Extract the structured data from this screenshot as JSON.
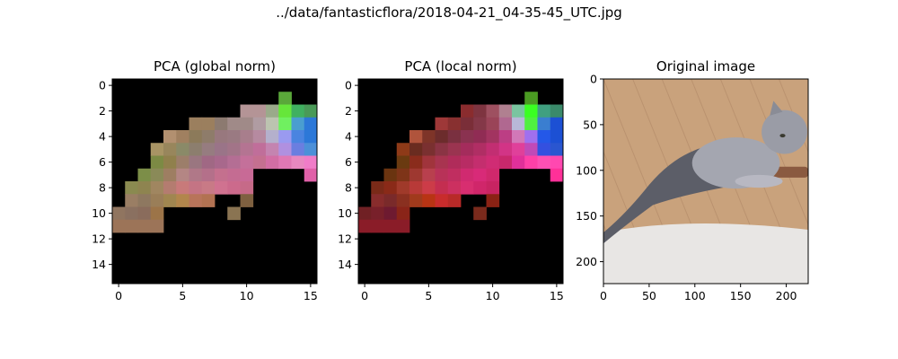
{
  "figure_title": "../data/fantasticflora/2018-04-21_04-35-45_UTC.jpg",
  "colors": {
    "background": "#000000",
    "axis": "#000000"
  },
  "chart_data": [
    {
      "type": "heatmap",
      "title": "PCA (global norm)",
      "grid_size": 16,
      "xticks": [
        0,
        5,
        10,
        15
      ],
      "yticks": [
        0,
        2,
        4,
        6,
        8,
        10,
        12,
        14
      ],
      "grid": false,
      "cells": [
        [
          1,
          13,
          "#5aa83a"
        ],
        [
          2,
          10,
          "#b49496"
        ],
        [
          2,
          11,
          "#b49496"
        ],
        [
          2,
          12,
          "#9aaa8a"
        ],
        [
          2,
          13,
          "#66e63a"
        ],
        [
          2,
          14,
          "#40b060"
        ],
        [
          2,
          15,
          "#4a9a58"
        ],
        [
          3,
          6,
          "#9b7f5e"
        ],
        [
          3,
          7,
          "#9b7f5e"
        ],
        [
          3,
          8,
          "#8c7a70"
        ],
        [
          3,
          9,
          "#a08a88"
        ],
        [
          3,
          10,
          "#a08a88"
        ],
        [
          3,
          11,
          "#b09ca2"
        ],
        [
          3,
          12,
          "#bcc4b0"
        ],
        [
          3,
          13,
          "#70f060"
        ],
        [
          3,
          14,
          "#4a9ed0"
        ],
        [
          3,
          15,
          "#2c78d8"
        ],
        [
          4,
          4,
          "#b29070"
        ],
        [
          4,
          5,
          "#a08060"
        ],
        [
          4,
          6,
          "#8c7a5a"
        ],
        [
          4,
          7,
          "#8e7c6a"
        ],
        [
          4,
          8,
          "#98787e"
        ],
        [
          4,
          9,
          "#9a7a82"
        ],
        [
          4,
          10,
          "#a87e8c"
        ],
        [
          4,
          11,
          "#b68aa0"
        ],
        [
          4,
          12,
          "#b4b0cc"
        ],
        [
          4,
          13,
          "#9a9af0"
        ],
        [
          4,
          14,
          "#4a84e0"
        ],
        [
          4,
          15,
          "#2c78d8"
        ],
        [
          5,
          3,
          "#a89464"
        ],
        [
          5,
          4,
          "#98865c"
        ],
        [
          5,
          5,
          "#8a8a68"
        ],
        [
          5,
          6,
          "#8c7e6e"
        ],
        [
          5,
          7,
          "#967c80"
        ],
        [
          5,
          8,
          "#9a7488"
        ],
        [
          5,
          9,
          "#a27488"
        ],
        [
          5,
          10,
          "#b47492"
        ],
        [
          5,
          11,
          "#c06e9a"
        ],
        [
          5,
          12,
          "#c484b0"
        ],
        [
          5,
          13,
          "#b090e0"
        ],
        [
          5,
          14,
          "#6a7ee0"
        ],
        [
          5,
          15,
          "#4c90d8"
        ],
        [
          6,
          3,
          "#7c8a44"
        ],
        [
          6,
          4,
          "#90804c"
        ],
        [
          6,
          5,
          "#9c7e6a"
        ],
        [
          6,
          6,
          "#9a7680"
        ],
        [
          6,
          7,
          "#a06884"
        ],
        [
          6,
          8,
          "#a8688c"
        ],
        [
          6,
          9,
          "#b46e94"
        ],
        [
          6,
          10,
          "#c4709a"
        ],
        [
          6,
          11,
          "#c47090"
        ],
        [
          6,
          12,
          "#d26ea4"
        ],
        [
          6,
          13,
          "#e078b4"
        ],
        [
          6,
          14,
          "#e888c0"
        ],
        [
          6,
          15,
          "#f07cc8"
        ],
        [
          7,
          2,
          "#7c8e48"
        ],
        [
          7,
          3,
          "#8a8a58"
        ],
        [
          7,
          4,
          "#9e7e62"
        ],
        [
          7,
          5,
          "#b48684"
        ],
        [
          7,
          6,
          "#b07888"
        ],
        [
          7,
          7,
          "#b4708a"
        ],
        [
          7,
          8,
          "#c4708e"
        ],
        [
          7,
          9,
          "#c46c92"
        ],
        [
          7,
          10,
          "#c86a96"
        ],
        [
          7,
          15,
          "#e060a8"
        ],
        [
          8,
          1,
          "#8a8a50"
        ],
        [
          8,
          2,
          "#8e8450"
        ],
        [
          8,
          3,
          "#a08660"
        ],
        [
          8,
          4,
          "#b47c70"
        ],
        [
          8,
          5,
          "#c87a7a"
        ],
        [
          8,
          6,
          "#c47484"
        ],
        [
          8,
          7,
          "#c87a86"
        ],
        [
          8,
          8,
          "#d07290"
        ],
        [
          8,
          9,
          "#cc6a8c"
        ],
        [
          8,
          10,
          "#c66a88"
        ],
        [
          9,
          1,
          "#9a7e64"
        ],
        [
          9,
          2,
          "#8e7860"
        ],
        [
          9,
          3,
          "#9a7e58"
        ],
        [
          9,
          4,
          "#a08650"
        ],
        [
          9,
          5,
          "#b2864c"
        ],
        [
          9,
          6,
          "#b8745a"
        ],
        [
          9,
          7,
          "#b27252"
        ],
        [
          9,
          10,
          "#7e6040"
        ],
        [
          10,
          0,
          "#907560"
        ],
        [
          10,
          1,
          "#8a7060"
        ],
        [
          10,
          2,
          "#8a6c5c"
        ],
        [
          10,
          3,
          "#9c7448"
        ],
        [
          10,
          9,
          "#8a7452"
        ],
        [
          11,
          0,
          "#9c7458"
        ],
        [
          11,
          1,
          "#9c7458"
        ],
        [
          11,
          2,
          "#9c7458"
        ],
        [
          11,
          3,
          "#9c7458"
        ]
      ]
    },
    {
      "type": "heatmap",
      "title": "PCA (local norm)",
      "grid_size": 16,
      "xticks": [
        0,
        5,
        10,
        15
      ],
      "yticks": [
        0,
        2,
        4,
        6,
        8,
        10,
        12,
        14
      ],
      "grid": false,
      "cells": [
        [
          1,
          13,
          "#4a9a22"
        ],
        [
          2,
          8,
          "#8a2c2e"
        ],
        [
          2,
          9,
          "#7e3440"
        ],
        [
          2,
          10,
          "#9e5060"
        ],
        [
          2,
          11,
          "#b08090"
        ],
        [
          2,
          12,
          "#7ac4a0"
        ],
        [
          2,
          13,
          "#3aff22"
        ],
        [
          2,
          14,
          "#40a080"
        ],
        [
          2,
          15,
          "#3a8a6a"
        ],
        [
          3,
          6,
          "#9e3838"
        ],
        [
          3,
          7,
          "#883030"
        ],
        [
          3,
          8,
          "#7a2e38"
        ],
        [
          3,
          9,
          "#843848"
        ],
        [
          3,
          10,
          "#9a4458"
        ],
        [
          3,
          11,
          "#b06890"
        ],
        [
          3,
          12,
          "#b8b8d8"
        ],
        [
          3,
          13,
          "#50f040"
        ],
        [
          3,
          14,
          "#3a7ed0"
        ],
        [
          3,
          15,
          "#1c50d4"
        ],
        [
          4,
          4,
          "#b0543c"
        ],
        [
          4,
          5,
          "#7e3428"
        ],
        [
          4,
          6,
          "#6c2c2c"
        ],
        [
          4,
          7,
          "#7a3040"
        ],
        [
          4,
          8,
          "#8a3250"
        ],
        [
          4,
          9,
          "#902c54"
        ],
        [
          4,
          10,
          "#a23460"
        ],
        [
          4,
          11,
          "#bc3e84"
        ],
        [
          4,
          12,
          "#d278b8"
        ],
        [
          4,
          13,
          "#a070ee"
        ],
        [
          4,
          14,
          "#2458e8"
        ],
        [
          4,
          15,
          "#1c50d4"
        ],
        [
          5,
          3,
          "#8e3a18"
        ],
        [
          5,
          4,
          "#6a2c20"
        ],
        [
          5,
          5,
          "#7a3030"
        ],
        [
          5,
          6,
          "#8a3444"
        ],
        [
          5,
          7,
          "#9a3450"
        ],
        [
          5,
          8,
          "#a42c5c"
        ],
        [
          5,
          9,
          "#b02e64"
        ],
        [
          5,
          10,
          "#c22e72"
        ],
        [
          5,
          11,
          "#d23486"
        ],
        [
          5,
          12,
          "#e0409a"
        ],
        [
          5,
          13,
          "#c04ab8"
        ],
        [
          5,
          14,
          "#3450e0"
        ],
        [
          5,
          15,
          "#2a56d0"
        ],
        [
          6,
          3,
          "#6a3a10"
        ],
        [
          6,
          4,
          "#8a2c1c"
        ],
        [
          6,
          5,
          "#a0343c"
        ],
        [
          6,
          6,
          "#a83450"
        ],
        [
          6,
          7,
          "#b02c5a"
        ],
        [
          6,
          8,
          "#b82c64"
        ],
        [
          6,
          9,
          "#c42e6e"
        ],
        [
          6,
          10,
          "#d02c74"
        ],
        [
          6,
          11,
          "#c8286c"
        ],
        [
          6,
          12,
          "#e0309a"
        ],
        [
          6,
          13,
          "#ff40a8"
        ],
        [
          6,
          14,
          "#ff50b4"
        ],
        [
          6,
          15,
          "#ff48b0"
        ],
        [
          7,
          2,
          "#6a3410"
        ],
        [
          7,
          3,
          "#7e3418"
        ],
        [
          7,
          4,
          "#9e3830"
        ],
        [
          7,
          5,
          "#b8404e"
        ],
        [
          7,
          6,
          "#b83258"
        ],
        [
          7,
          7,
          "#c02e60"
        ],
        [
          7,
          8,
          "#d02a70"
        ],
        [
          7,
          9,
          "#d82a78"
        ],
        [
          7,
          10,
          "#d0286c"
        ],
        [
          7,
          15,
          "#ff3098"
        ],
        [
          8,
          1,
          "#7a2a18"
        ],
        [
          8,
          2,
          "#8a2a18"
        ],
        [
          8,
          3,
          "#a03a2a"
        ],
        [
          8,
          4,
          "#b83a38"
        ],
        [
          8,
          5,
          "#cc3c48"
        ],
        [
          8,
          6,
          "#c42e50"
        ],
        [
          8,
          7,
          "#cc3060"
        ],
        [
          8,
          8,
          "#d82e70"
        ],
        [
          8,
          9,
          "#d0266a"
        ],
        [
          8,
          10,
          "#c82462"
        ],
        [
          9,
          1,
          "#882c2c"
        ],
        [
          9,
          2,
          "#7a2a2a"
        ],
        [
          9,
          3,
          "#8a3020"
        ],
        [
          9,
          4,
          "#a03a1c"
        ],
        [
          9,
          5,
          "#b83414"
        ],
        [
          9,
          6,
          "#c82c2c"
        ],
        [
          9,
          7,
          "#b82a28"
        ],
        [
          9,
          10,
          "#8a2214"
        ],
        [
          10,
          0,
          "#702024"
        ],
        [
          10,
          1,
          "#78202a"
        ],
        [
          10,
          2,
          "#6e1a30"
        ],
        [
          10,
          3,
          "#8a2418"
        ],
        [
          10,
          9,
          "#7a2a1c"
        ],
        [
          11,
          0,
          "#8a1c28"
        ],
        [
          11,
          1,
          "#8a1c28"
        ],
        [
          11,
          2,
          "#8a1c28"
        ],
        [
          11,
          3,
          "#8a1c28"
        ]
      ]
    },
    {
      "type": "image",
      "title": "Original image",
      "x_range": [
        0,
        224
      ],
      "y_range": [
        0,
        224
      ],
      "xticks": [
        0,
        50,
        100,
        150,
        200
      ],
      "yticks": [
        0,
        50,
        100,
        150,
        200
      ],
      "content": "cat-photo",
      "colors": {
        "floor": "#c9a27c",
        "wall": "#e8e6e4",
        "fur": "#a4a6b0",
        "fur_dark": "#5c5e68",
        "plank_line": "#a88060"
      }
    }
  ]
}
